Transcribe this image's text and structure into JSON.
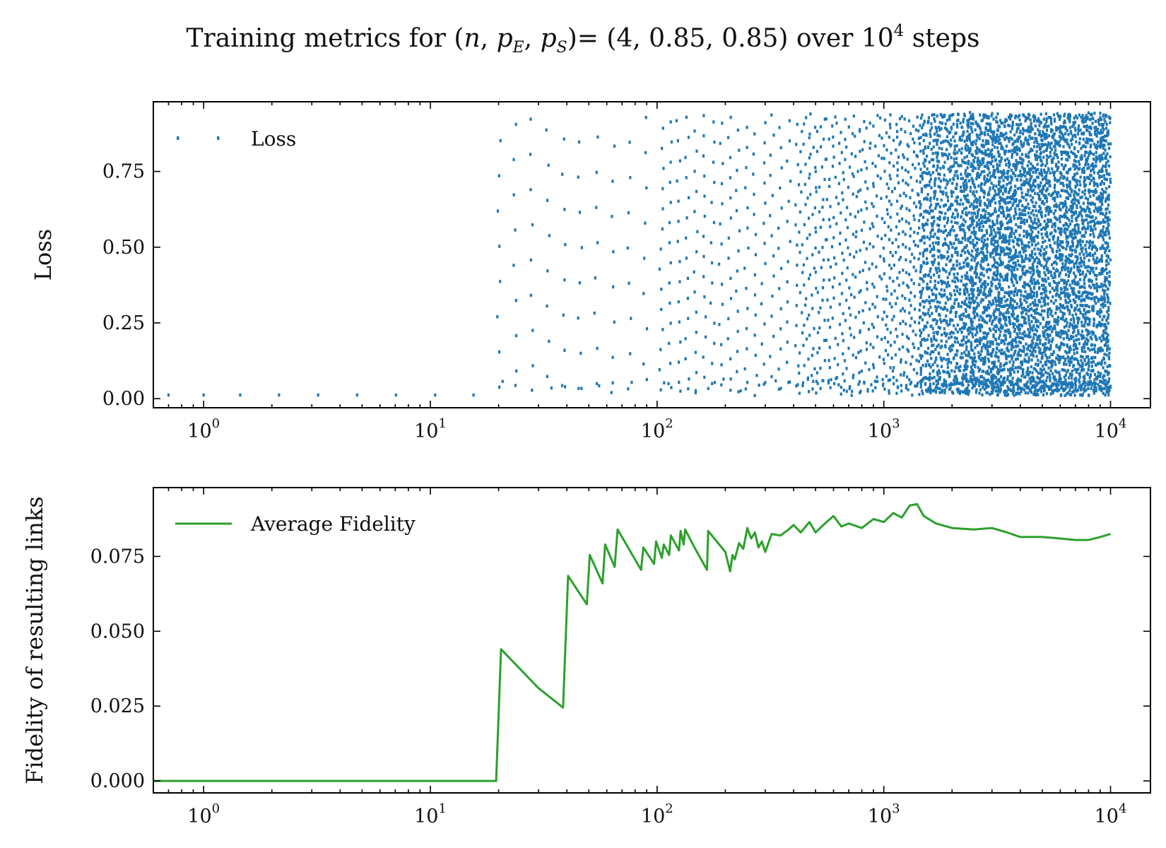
{
  "figure": {
    "title_parts": {
      "prefix": "Training metrics for (",
      "n": "n",
      "sep1": ", ",
      "p": "p",
      "E": "E",
      "sep2": ", ",
      "S": "S",
      "suffix": ")= (4, 0.85, 0.85) over 10",
      "exp": "4",
      "tail": " steps"
    }
  },
  "chart_data": [
    {
      "type": "scatter",
      "xscale": "log",
      "xlim": [
        0.6,
        15000
      ],
      "ylim": [
        -0.03,
        0.98
      ],
      "ylabel": "Loss",
      "yticks": [
        0.0,
        0.25,
        0.5,
        0.75
      ],
      "ytick_labels": [
        "0.00",
        "0.25",
        "0.50",
        "0.75"
      ],
      "xtick_labels": [
        {
          "base": "10",
          "exp": "0",
          "value": 1
        },
        {
          "base": "10",
          "exp": "1",
          "value": 10
        },
        {
          "base": "10",
          "exp": "2",
          "value": 100
        },
        {
          "base": "10",
          "exp": "3",
          "value": 1000
        },
        {
          "base": "10",
          "exp": "4",
          "value": 10000
        }
      ],
      "legend": {
        "position": "upper-left",
        "entries": [
          "Loss"
        ]
      },
      "color": "#1f77b4",
      "marker": "point",
      "max_step": 10000,
      "series": [
        {
          "name": "Loss",
          "description_points": [
            [
              0.7,
              0.01
            ],
            [
              1,
              0.01
            ],
            [
              1.5,
              0.01
            ],
            [
              2.2,
              0.01
            ],
            [
              3.2,
              0.01
            ],
            [
              4.8,
              0.01
            ],
            [
              7,
              0.01
            ],
            [
              10.5,
              0.01
            ],
            [
              15.5,
              0.01
            ],
            [
              20,
              0.05
            ],
            [
              20,
              0.3
            ],
            [
              20,
              0.55
            ],
            [
              21,
              0.92
            ],
            [
              21,
              0.78
            ],
            [
              21,
              0.6
            ],
            [
              21,
              0.45
            ],
            [
              21,
              0.25
            ],
            [
              40,
              0.09
            ],
            [
              40,
              0.22
            ],
            [
              40,
              0.36
            ],
            [
              40,
              0.48
            ],
            [
              41,
              0.62
            ],
            [
              41,
              0.75
            ],
            [
              42,
              0.89
            ]
          ]
        }
      ]
    },
    {
      "type": "line",
      "xscale": "log",
      "xlim": [
        0.6,
        15000
      ],
      "ylim": [
        -0.004,
        0.098
      ],
      "ylabel": "Fidelity of resulting links",
      "yticks": [
        0.0,
        0.025,
        0.05,
        0.075
      ],
      "ytick_labels": [
        "0.000",
        "0.025",
        "0.050",
        "0.075"
      ],
      "xtick_labels": [
        {
          "base": "10",
          "exp": "0",
          "value": 1
        },
        {
          "base": "10",
          "exp": "1",
          "value": 10
        },
        {
          "base": "10",
          "exp": "2",
          "value": 100
        },
        {
          "base": "10",
          "exp": "3",
          "value": 1000
        },
        {
          "base": "10",
          "exp": "4",
          "value": 10000
        }
      ],
      "legend": {
        "position": "upper-left",
        "entries": [
          "Average Fidelity"
        ]
      },
      "color": "#2ca02c",
      "series": [
        {
          "name": "Average Fidelity",
          "x": [
            0.6,
            19.5,
            20.5,
            30,
            38.5,
            40.5,
            49,
            50.5,
            57.5,
            59,
            65,
            67,
            85,
            87,
            97,
            99,
            105,
            107,
            113,
            115,
            125,
            127,
            131,
            133,
            145,
            166,
            168,
            200,
            210,
            215,
            220,
            230,
            240,
            250,
            260,
            270,
            280,
            290,
            300,
            320,
            350,
            380,
            400,
            430,
            470,
            500,
            550,
            600,
            650,
            700,
            800,
            900,
            1000,
            1100,
            1200,
            1300,
            1400,
            1500,
            1700,
            2000,
            2500,
            3000,
            3500,
            4000,
            5000,
            6000,
            7000,
            8000,
            9000,
            10000
          ],
          "y": [
            0.0,
            0.0,
            0.044,
            0.031,
            0.0245,
            0.0685,
            0.059,
            0.0755,
            0.066,
            0.079,
            0.0715,
            0.084,
            0.0705,
            0.078,
            0.0725,
            0.08,
            0.0745,
            0.079,
            0.0755,
            0.082,
            0.077,
            0.0835,
            0.079,
            0.084,
            0.0785,
            0.0705,
            0.0835,
            0.0765,
            0.07,
            0.0755,
            0.074,
            0.0795,
            0.0775,
            0.0845,
            0.081,
            0.083,
            0.078,
            0.08,
            0.0765,
            0.0825,
            0.082,
            0.084,
            0.0855,
            0.083,
            0.0865,
            0.083,
            0.086,
            0.0885,
            0.085,
            0.086,
            0.0845,
            0.0875,
            0.0865,
            0.0895,
            0.088,
            0.092,
            0.0925,
            0.0885,
            0.086,
            0.0845,
            0.084,
            0.0845,
            0.083,
            0.0815,
            0.0815,
            0.081,
            0.0805,
            0.0805,
            0.0815,
            0.0825
          ]
        }
      ]
    }
  ]
}
